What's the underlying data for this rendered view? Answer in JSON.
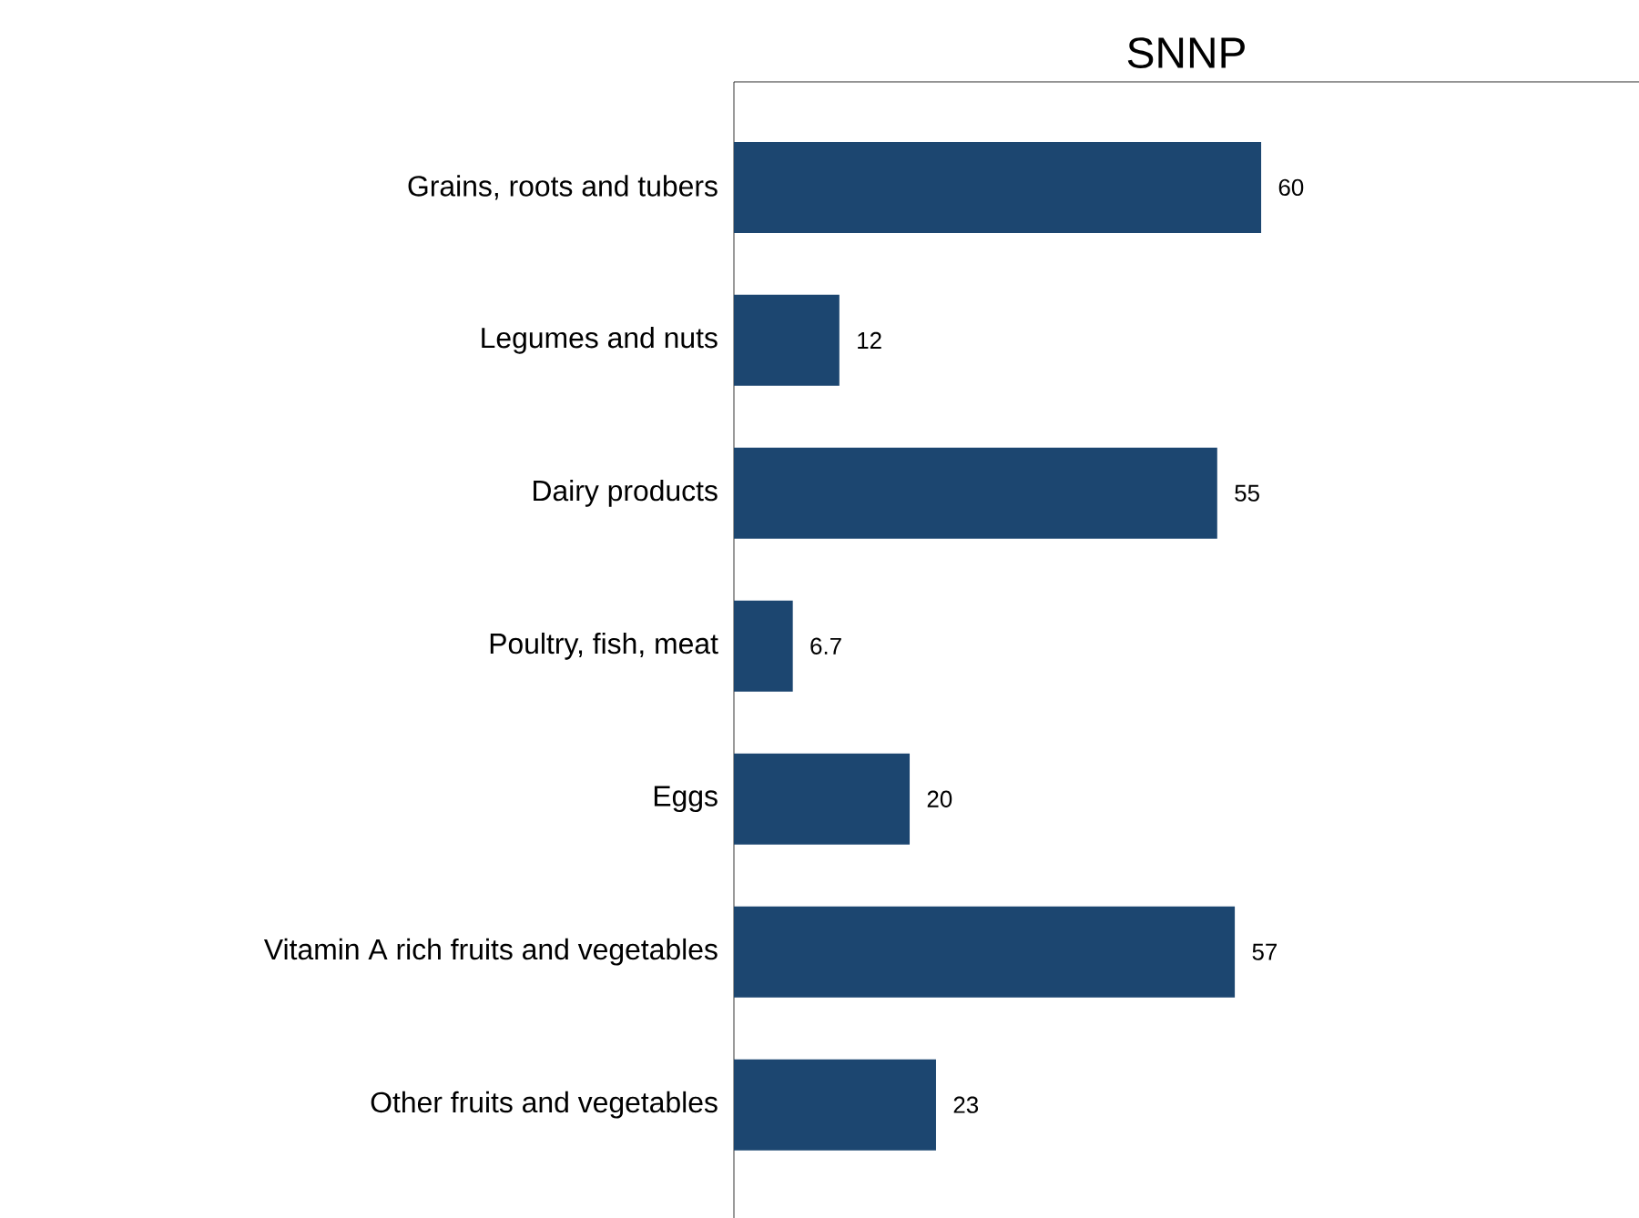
{
  "chart_data": {
    "type": "bar",
    "orientation": "horizontal",
    "title": "SNNP",
    "categories": [
      "Grains, roots and tubers",
      "Legumes and nuts",
      "Dairy products",
      "Poultry, fish, meat",
      "Eggs",
      "Vitamin A rich fruits and vegetables",
      "Other fruits and vegetables"
    ],
    "values": [
      60,
      12,
      55,
      6.7,
      20,
      57,
      23
    ],
    "value_labels": [
      "60",
      "12",
      "55",
      "6.7",
      "20",
      "57",
      "23"
    ],
    "color": "#1c4670",
    "xlim": [
      0,
      103
    ],
    "tick_labels": "y"
  }
}
